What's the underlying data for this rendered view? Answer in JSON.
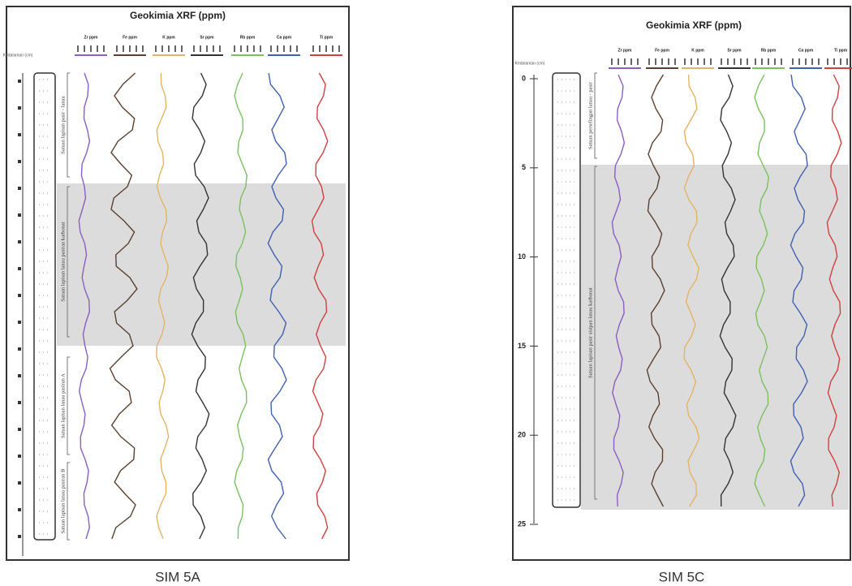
{
  "panels": [
    {
      "title": "Geokimia XRF (ppm)",
      "depth_label": "Kedalaman (cm)",
      "columns": [
        "Zr ppm",
        "Fe ppm",
        "K ppm",
        "Sr ppm",
        "Rb ppm",
        "Ca ppm",
        "Ti ppm"
      ],
      "units": [
        "Satuan lapisan pasir - lanau",
        "Satuan lapisan lanau pasiran karbonat",
        "Satuan lapisan lanau pasiran A",
        "Satuan lapisan lanau pasiran B"
      ],
      "caption": "SIM 5A"
    },
    {
      "title": "Geokimia XRF (ppm)",
      "depth_label": "Kedalaman (cm)",
      "columns": [
        "Zr ppm",
        "Fe ppm",
        "K ppm",
        "Sr ppm",
        "Rb ppm",
        "Ca ppm",
        "Ti ppm"
      ],
      "units": [
        "Satuan perselingan lanau - pasir",
        "Satuan lapisan pasir sisipan lanau karbonat"
      ],
      "depth_ticks": [
        0,
        5,
        10,
        15,
        20,
        25
      ],
      "caption": "SIM 5C"
    }
  ]
}
